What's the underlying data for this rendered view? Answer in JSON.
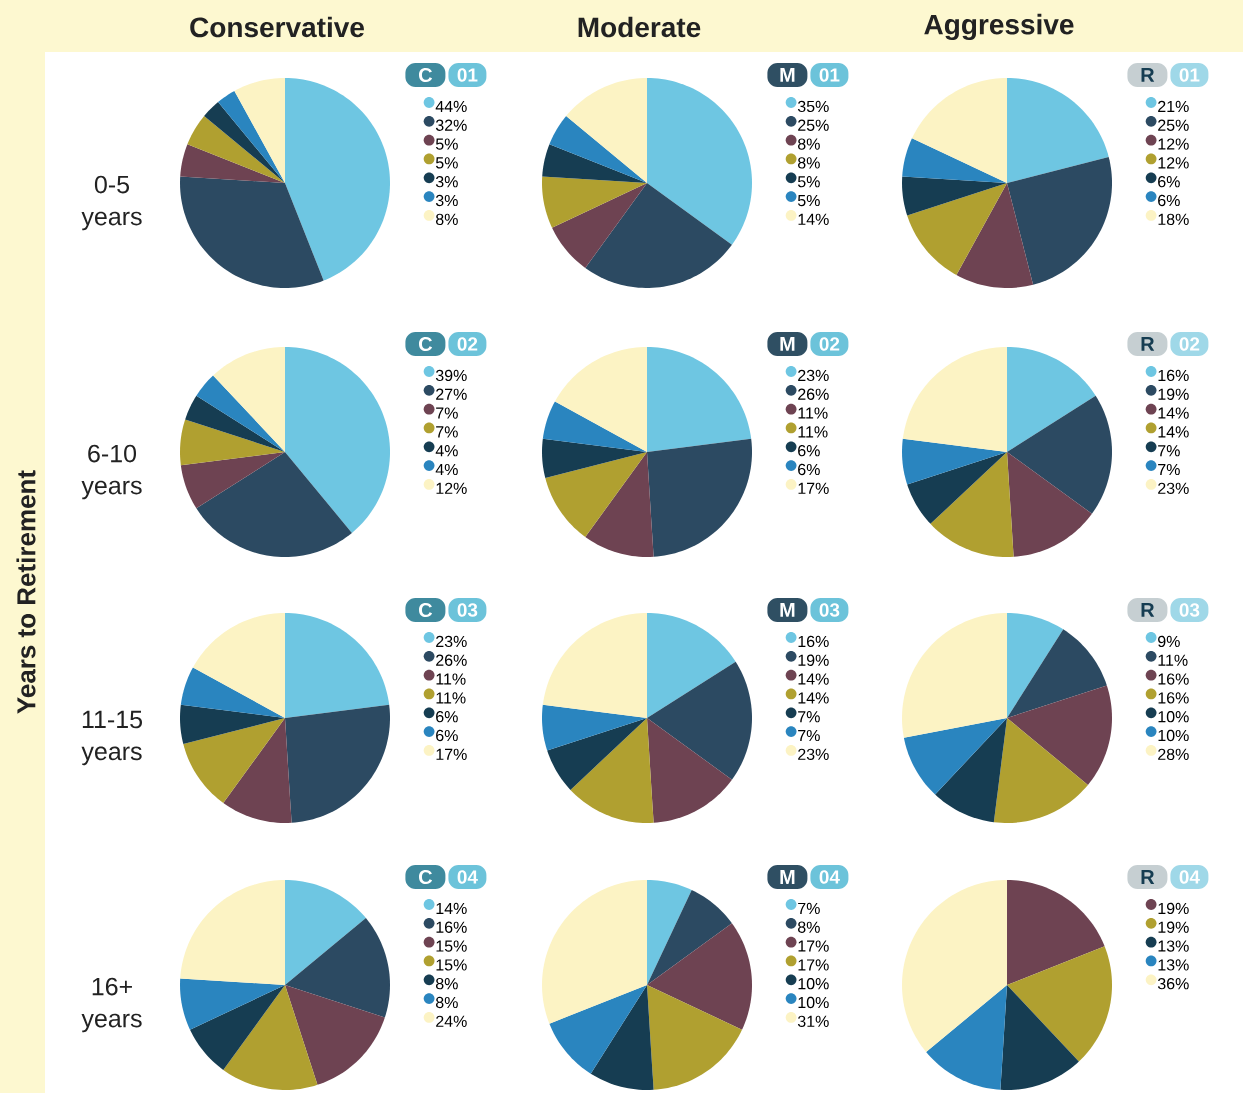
{
  "chart_data": [
    {
      "type": "pie",
      "title": "C",
      "subtitle": "01",
      "legend": "right",
      "categories": [
        "44%",
        "32%",
        "5%",
        "5%",
        "3%",
        "3%",
        "8%"
      ],
      "values": [
        44,
        32,
        5,
        5,
        3,
        3,
        8
      ],
      "colors": [
        "#6ec6e2",
        "#2c4a62",
        "#6e4352",
        "#b0a030",
        "#163d52",
        "#2a85bf",
        "#fcf3c4"
      ]
    },
    {
      "type": "pie",
      "title": "M",
      "subtitle": "01",
      "legend": "right",
      "categories": [
        "35%",
        "25%",
        "8%",
        "8%",
        "5%",
        "5%",
        "14%"
      ],
      "values": [
        35,
        25,
        8,
        8,
        5,
        5,
        14
      ],
      "colors": [
        "#6ec6e2",
        "#2c4a62",
        "#6e4352",
        "#b0a030",
        "#163d52",
        "#2a85bf",
        "#fcf3c4"
      ]
    },
    {
      "type": "pie",
      "title": "R",
      "subtitle": "01",
      "legend": "right",
      "categories": [
        "21%",
        "25%",
        "12%",
        "12%",
        "6%",
        "6%",
        "18%"
      ],
      "values": [
        21,
        25,
        12,
        12,
        6,
        6,
        18
      ],
      "colors": [
        "#6ec6e2",
        "#2c4a62",
        "#6e4352",
        "#b0a030",
        "#163d52",
        "#2a85bf",
        "#fcf3c4"
      ]
    },
    {
      "type": "pie",
      "title": "C",
      "subtitle": "02",
      "legend": "right",
      "categories": [
        "39%",
        "27%",
        "7%",
        "7%",
        "4%",
        "4%",
        "12%"
      ],
      "values": [
        39,
        27,
        7,
        7,
        4,
        4,
        12
      ],
      "colors": [
        "#6ec6e2",
        "#2c4a62",
        "#6e4352",
        "#b0a030",
        "#163d52",
        "#2a85bf",
        "#fcf3c4"
      ]
    },
    {
      "type": "pie",
      "title": "M",
      "subtitle": "02",
      "legend": "right",
      "categories": [
        "23%",
        "26%",
        "11%",
        "11%",
        "6%",
        "6%",
        "17%"
      ],
      "values": [
        23,
        26,
        11,
        11,
        6,
        6,
        17
      ],
      "colors": [
        "#6ec6e2",
        "#2c4a62",
        "#6e4352",
        "#b0a030",
        "#163d52",
        "#2a85bf",
        "#fcf3c4"
      ]
    },
    {
      "type": "pie",
      "title": "R",
      "subtitle": "02",
      "legend": "right",
      "categories": [
        "16%",
        "19%",
        "14%",
        "14%",
        "7%",
        "7%",
        "23%"
      ],
      "values": [
        16,
        19,
        14,
        14,
        7,
        7,
        23
      ],
      "colors": [
        "#6ec6e2",
        "#2c4a62",
        "#6e4352",
        "#b0a030",
        "#163d52",
        "#2a85bf",
        "#fcf3c4"
      ]
    },
    {
      "type": "pie",
      "title": "C",
      "subtitle": "03",
      "legend": "right",
      "categories": [
        "23%",
        "26%",
        "11%",
        "11%",
        "6%",
        "6%",
        "17%"
      ],
      "values": [
        23,
        26,
        11,
        11,
        6,
        6,
        17
      ],
      "colors": [
        "#6ec6e2",
        "#2c4a62",
        "#6e4352",
        "#b0a030",
        "#163d52",
        "#2a85bf",
        "#fcf3c4"
      ]
    },
    {
      "type": "pie",
      "title": "M",
      "subtitle": "03",
      "legend": "right",
      "categories": [
        "16%",
        "19%",
        "14%",
        "14%",
        "7%",
        "7%",
        "23%"
      ],
      "values": [
        16,
        19,
        14,
        14,
        7,
        7,
        23
      ],
      "colors": [
        "#6ec6e2",
        "#2c4a62",
        "#6e4352",
        "#b0a030",
        "#163d52",
        "#2a85bf",
        "#fcf3c4"
      ]
    },
    {
      "type": "pie",
      "title": "R",
      "subtitle": "03",
      "legend": "right",
      "categories": [
        "9%",
        "11%",
        "16%",
        "16%",
        "10%",
        "10%",
        "28%"
      ],
      "values": [
        9,
        11,
        16,
        16,
        10,
        10,
        28
      ],
      "colors": [
        "#6ec6e2",
        "#2c4a62",
        "#6e4352",
        "#b0a030",
        "#163d52",
        "#2a85bf",
        "#fcf3c4"
      ]
    },
    {
      "type": "pie",
      "title": "C",
      "subtitle": "04",
      "legend": "right",
      "categories": [
        "14%",
        "16%",
        "15%",
        "15%",
        "8%",
        "8%",
        "24%"
      ],
      "values": [
        14,
        16,
        15,
        15,
        8,
        8,
        24
      ],
      "colors": [
        "#6ec6e2",
        "#2c4a62",
        "#6e4352",
        "#b0a030",
        "#163d52",
        "#2a85bf",
        "#fcf3c4"
      ]
    },
    {
      "type": "pie",
      "title": "M",
      "subtitle": "04",
      "legend": "right",
      "categories": [
        "7%",
        "8%",
        "17%",
        "17%",
        "10%",
        "10%",
        "31%"
      ],
      "values": [
        7,
        8,
        17,
        17,
        10,
        10,
        31
      ],
      "colors": [
        "#6ec6e2",
        "#2c4a62",
        "#6e4352",
        "#b0a030",
        "#163d52",
        "#2a85bf",
        "#fcf3c4"
      ]
    },
    {
      "type": "pie",
      "title": "R",
      "subtitle": "04",
      "legend": "right",
      "categories": [
        "19%",
        "19%",
        "13%",
        "13%",
        "36%"
      ],
      "values": [
        19,
        19,
        13,
        13,
        36
      ],
      "colors": [
        "#6e4352",
        "#b0a030",
        "#163d52",
        "#2a85bf",
        "#fcf3c4"
      ]
    },
    {
      "type": "other",
      "ylabel": "Years to Retirement",
      "annotations": [
        "Conservative",
        "Moderate",
        "Aggressive",
        "0-5 years",
        "6-10 years",
        "11-15 years",
        "16+ years"
      ]
    }
  ]
}
